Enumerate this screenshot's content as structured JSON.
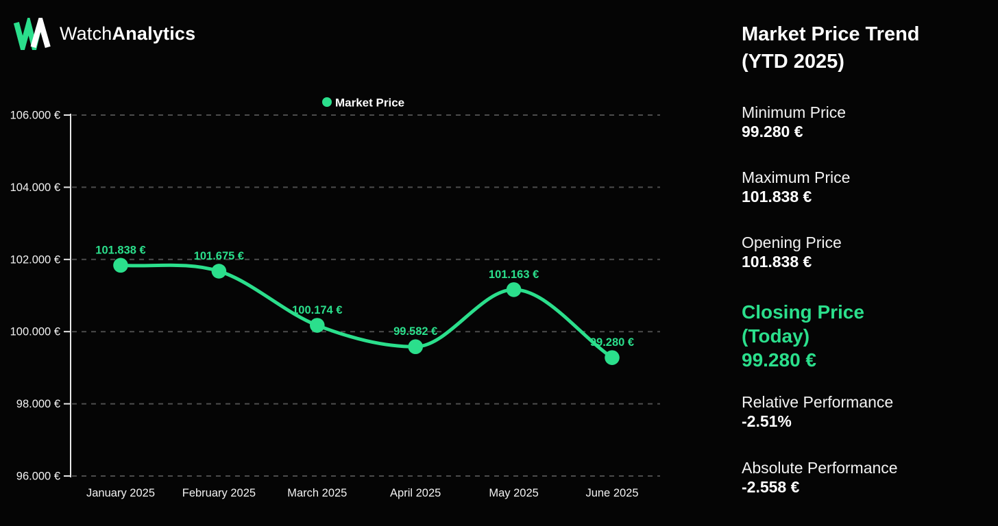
{
  "header": {
    "brand_regular": "Watch",
    "brand_bold": "Analytics"
  },
  "panel": {
    "title_line1": "Market Price Trend",
    "title_line2": "(YTD 2025)",
    "stats": [
      {
        "name": "minimum-price",
        "label_lines": [
          "Minimum Price"
        ],
        "value": "99.280 €",
        "highlight": false
      },
      {
        "name": "maximum-price",
        "label_lines": [
          "Maximum Price"
        ],
        "value": "101.838 €",
        "highlight": false
      },
      {
        "name": "opening-price",
        "label_lines": [
          "Opening Price"
        ],
        "value": "101.838 €",
        "highlight": false
      },
      {
        "name": "closing-price-today",
        "label_lines": [
          "Closing Price",
          "(Today)"
        ],
        "value": "99.280 €",
        "highlight": true
      },
      {
        "name": "relative-performance",
        "label_lines": [
          "Relative Performance"
        ],
        "value": "-2.51%",
        "highlight": false
      },
      {
        "name": "absolute-performance",
        "label_lines": [
          "Absolute Performance"
        ],
        "value": "-2.558 €",
        "highlight": false
      }
    ]
  },
  "chart_data": {
    "type": "line",
    "legend": "Market Price",
    "legend_position": "top-center",
    "categories": [
      "January 2025",
      "February 2025",
      "March 2025",
      "April 2025",
      "May 2025",
      "June 2025"
    ],
    "values": [
      101838,
      101675,
      100174,
      99582,
      101163,
      99280
    ],
    "point_labels": [
      "101.838 €",
      "101.675 €",
      "100.174 €",
      "99.582 €",
      "101.163 €",
      "99.280 €"
    ],
    "yticks": [
      106000,
      104000,
      102000,
      100000,
      98000,
      96000
    ],
    "ytick_labels": [
      "106.000 €",
      "104.000 €",
      "102.000 €",
      "100.000 €",
      "98.000 €",
      "96.000 €"
    ],
    "ylim": [
      96000,
      106000
    ],
    "grid": true,
    "curve": "monotone"
  },
  "colors": {
    "background": "#050505",
    "accent": "#2BDF8C",
    "grid": "#4d4d4d",
    "axis": "#e8e8e8",
    "text": "#f2f2f2",
    "legend_text": "#ffffff"
  }
}
